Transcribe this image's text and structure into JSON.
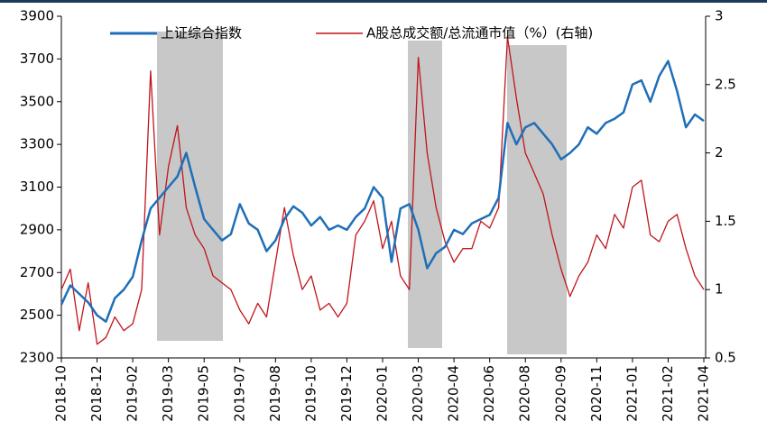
{
  "chart_data": {
    "type": "line",
    "categories": [
      "2018-10",
      null,
      null,
      null,
      "2018-12",
      null,
      null,
      null,
      "2019-02",
      null,
      null,
      null,
      "2019-03",
      null,
      null,
      null,
      "2019-05",
      null,
      null,
      null,
      "2019-07",
      null,
      null,
      null,
      "2019-08",
      null,
      null,
      null,
      "2019-10",
      null,
      null,
      null,
      "2019-12",
      null,
      null,
      null,
      "2020-01",
      null,
      null,
      null,
      "2020-03",
      null,
      null,
      null,
      "2020-04",
      null,
      null,
      null,
      "2020-06",
      null,
      null,
      null,
      "2020-08",
      null,
      null,
      null,
      "2020-09",
      null,
      null,
      null,
      "2020-11",
      null,
      null,
      null,
      "2021-01",
      null,
      null,
      null,
      "2021-02",
      null,
      null,
      null,
      "2021-04"
    ],
    "series": [
      {
        "name": "上证综合指数",
        "color": "#1f6fb8",
        "axis": "y",
        "values": [
          2550,
          2640,
          2600,
          2560,
          2500,
          2470,
          2580,
          2620,
          2680,
          2850,
          3000,
          3050,
          3100,
          3150,
          3260,
          3100,
          2950,
          2900,
          2850,
          2880,
          3020,
          2930,
          2900,
          2800,
          2850,
          2950,
          3010,
          2980,
          2920,
          2960,
          2900,
          2920,
          2900,
          2960,
          3000,
          3100,
          3050,
          2750,
          3000,
          3020,
          2900,
          2720,
          2790,
          2820,
          2900,
          2880,
          2930,
          2950,
          2970,
          3050,
          3400,
          3300,
          3380,
          3400,
          3350,
          3300,
          3230,
          3260,
          3300,
          3380,
          3350,
          3400,
          3420,
          3450,
          3580,
          3600,
          3500,
          3620,
          3690,
          3550,
          3380,
          3440,
          3410
        ]
      },
      {
        "name": "A股总成交额/总流通市值（%）(右轴)",
        "color": "#c0141c",
        "axis": "y2",
        "values": [
          1.0,
          1.15,
          0.7,
          1.05,
          0.6,
          0.65,
          0.8,
          0.7,
          0.75,
          1.0,
          2.6,
          1.4,
          1.9,
          2.2,
          1.6,
          1.4,
          1.3,
          1.1,
          1.05,
          1.0,
          0.85,
          0.75,
          0.9,
          0.8,
          1.2,
          1.6,
          1.25,
          1.0,
          1.1,
          0.85,
          0.9,
          0.8,
          0.9,
          1.4,
          1.5,
          1.65,
          1.3,
          1.5,
          1.1,
          1.0,
          2.7,
          2.0,
          1.6,
          1.35,
          1.2,
          1.3,
          1.3,
          1.5,
          1.45,
          1.6,
          2.85,
          2.4,
          2.0,
          1.85,
          1.7,
          1.4,
          1.15,
          0.95,
          1.1,
          1.2,
          1.4,
          1.3,
          1.55,
          1.45,
          1.75,
          1.8,
          1.4,
          1.35,
          1.5,
          1.55,
          1.3,
          1.1,
          1.0
        ]
      }
    ],
    "ylim": [
      2300,
      3900
    ],
    "yticks": [
      2300,
      2500,
      2700,
      2900,
      3100,
      3300,
      3500,
      3700,
      3900
    ],
    "y2lim": [
      0.5,
      3
    ],
    "y2ticks": [
      0.5,
      1,
      1.5,
      2,
      2.5,
      3
    ],
    "legend": "top"
  }
}
